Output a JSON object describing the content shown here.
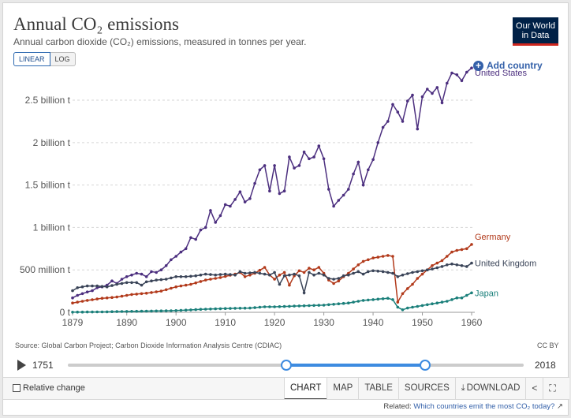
{
  "header": {
    "title": "Annual CO₂ emissions",
    "subtitle": "Annual carbon dioxide (CO₂) emissions, measured in tonnes per year.",
    "logo_line1": "Our World",
    "logo_line2": "in Data",
    "linear_label": "LINEAR",
    "log_label": "LOG",
    "add_country_label": "Add country"
  },
  "colors": {
    "United States": "#4c2f7f",
    "Germany": "#b23a1b",
    "United Kingdom": "#3a4458",
    "Japan": "#1a7f7a",
    "accent": "#3360a9"
  },
  "chart_data": {
    "type": "line",
    "title": "Annual CO₂ emissions",
    "xlabel": "",
    "ylabel": "",
    "xlim": [
      1879,
      1960
    ],
    "ylim": [
      0,
      2900000000
    ],
    "x_ticks": [
      1879,
      1890,
      1900,
      1910,
      1920,
      1930,
      1940,
      1950,
      1960
    ],
    "y_ticks": [
      {
        "value": 0,
        "label": "0 t"
      },
      {
        "value": 500000000,
        "label": "500 million t"
      },
      {
        "value": 1000000000,
        "label": "1 billion t"
      },
      {
        "value": 1500000000,
        "label": "1.5 billion t"
      },
      {
        "value": 2000000000,
        "label": "2 billion t"
      },
      {
        "value": 2500000000,
        "label": "2.5 billion t"
      }
    ],
    "grid": true,
    "series": [
      {
        "name": "United States",
        "anchors": [
          [
            1879,
            170
          ],
          [
            1880,
            200
          ],
          [
            1881,
            220
          ],
          [
            1882,
            240
          ],
          [
            1883,
            255
          ],
          [
            1884,
            290
          ],
          [
            1885,
            300
          ],
          [
            1886,
            320
          ],
          [
            1887,
            370
          ],
          [
            1888,
            340
          ],
          [
            1889,
            390
          ],
          [
            1890,
            420
          ],
          [
            1891,
            440
          ],
          [
            1892,
            460
          ],
          [
            1893,
            450
          ],
          [
            1894,
            420
          ],
          [
            1895,
            480
          ],
          [
            1896,
            470
          ],
          [
            1897,
            500
          ],
          [
            1898,
            550
          ],
          [
            1899,
            620
          ],
          [
            1900,
            660
          ],
          [
            1901,
            710
          ],
          [
            1902,
            750
          ],
          [
            1903,
            880
          ],
          [
            1904,
            860
          ],
          [
            1905,
            970
          ],
          [
            1906,
            1000
          ],
          [
            1907,
            1200
          ],
          [
            1908,
            1060
          ],
          [
            1909,
            1140
          ],
          [
            1910,
            1270
          ],
          [
            1911,
            1250
          ],
          [
            1912,
            1330
          ],
          [
            1913,
            1420
          ],
          [
            1914,
            1300
          ],
          [
            1915,
            1340
          ],
          [
            1916,
            1520
          ],
          [
            1917,
            1680
          ],
          [
            1918,
            1730
          ],
          [
            1919,
            1430
          ],
          [
            1920,
            1730
          ],
          [
            1921,
            1400
          ],
          [
            1922,
            1430
          ],
          [
            1923,
            1830
          ],
          [
            1924,
            1700
          ],
          [
            1925,
            1730
          ],
          [
            1926,
            1890
          ],
          [
            1927,
            1810
          ],
          [
            1928,
            1830
          ],
          [
            1929,
            1960
          ],
          [
            1930,
            1810
          ],
          [
            1931,
            1450
          ],
          [
            1932,
            1250
          ],
          [
            1933,
            1320
          ],
          [
            1934,
            1380
          ],
          [
            1935,
            1450
          ],
          [
            1936,
            1630
          ],
          [
            1937,
            1770
          ],
          [
            1938,
            1500
          ],
          [
            1939,
            1680
          ],
          [
            1940,
            1800
          ],
          [
            1941,
            2000
          ],
          [
            1942,
            2180
          ],
          [
            1943,
            2250
          ],
          [
            1944,
            2450
          ],
          [
            1945,
            2360
          ],
          [
            1946,
            2250
          ],
          [
            1947,
            2490
          ],
          [
            1948,
            2560
          ],
          [
            1949,
            2160
          ],
          [
            1950,
            2540
          ],
          [
            1951,
            2630
          ],
          [
            1952,
            2580
          ],
          [
            1953,
            2650
          ],
          [
            1954,
            2470
          ],
          [
            1955,
            2700
          ],
          [
            1956,
            2820
          ],
          [
            1957,
            2800
          ],
          [
            1958,
            2730
          ],
          [
            1959,
            2830
          ],
          [
            1960,
            2880
          ]
        ]
      },
      {
        "name": "Germany",
        "anchors": [
          [
            1879,
            110
          ],
          [
            1882,
            140
          ],
          [
            1885,
            165
          ],
          [
            1888,
            180
          ],
          [
            1891,
            210
          ],
          [
            1894,
            225
          ],
          [
            1897,
            250
          ],
          [
            1900,
            300
          ],
          [
            1903,
            330
          ],
          [
            1906,
            380
          ],
          [
            1909,
            410
          ],
          [
            1912,
            450
          ],
          [
            1913,
            470
          ],
          [
            1914,
            420
          ],
          [
            1916,
            460
          ],
          [
            1918,
            530
          ],
          [
            1919,
            440
          ],
          [
            1920,
            390
          ],
          [
            1921,
            440
          ],
          [
            1922,
            470
          ],
          [
            1923,
            320
          ],
          [
            1924,
            430
          ],
          [
            1925,
            490
          ],
          [
            1926,
            470
          ],
          [
            1927,
            520
          ],
          [
            1928,
            500
          ],
          [
            1929,
            530
          ],
          [
            1930,
            460
          ],
          [
            1931,
            380
          ],
          [
            1932,
            340
          ],
          [
            1933,
            370
          ],
          [
            1934,
            420
          ],
          [
            1935,
            460
          ],
          [
            1936,
            510
          ],
          [
            1937,
            560
          ],
          [
            1938,
            600
          ],
          [
            1939,
            620
          ],
          [
            1940,
            640
          ],
          [
            1941,
            650
          ],
          [
            1942,
            660
          ],
          [
            1943,
            670
          ],
          [
            1944,
            660
          ],
          [
            1945,
            120
          ],
          [
            1946,
            220
          ],
          [
            1947,
            280
          ],
          [
            1948,
            330
          ],
          [
            1949,
            400
          ],
          [
            1950,
            450
          ],
          [
            1951,
            500
          ],
          [
            1952,
            550
          ],
          [
            1953,
            580
          ],
          [
            1954,
            610
          ],
          [
            1955,
            660
          ],
          [
            1956,
            710
          ],
          [
            1957,
            730
          ],
          [
            1958,
            740
          ],
          [
            1959,
            750
          ],
          [
            1960,
            800
          ]
        ]
      },
      {
        "name": "United Kingdom",
        "anchors": [
          [
            1879,
            255
          ],
          [
            1880,
            290
          ],
          [
            1882,
            310
          ],
          [
            1884,
            310
          ],
          [
            1886,
            300
          ],
          [
            1888,
            330
          ],
          [
            1890,
            350
          ],
          [
            1892,
            350
          ],
          [
            1893,
            320
          ],
          [
            1894,
            360
          ],
          [
            1896,
            380
          ],
          [
            1898,
            390
          ],
          [
            1900,
            420
          ],
          [
            1902,
            420
          ],
          [
            1904,
            430
          ],
          [
            1906,
            450
          ],
          [
            1908,
            440
          ],
          [
            1910,
            450
          ],
          [
            1912,
            440
          ],
          [
            1913,
            480
          ],
          [
            1914,
            460
          ],
          [
            1916,
            470
          ],
          [
            1918,
            450
          ],
          [
            1919,
            440
          ],
          [
            1920,
            470
          ],
          [
            1921,
            330
          ],
          [
            1922,
            430
          ],
          [
            1923,
            440
          ],
          [
            1924,
            450
          ],
          [
            1925,
            430
          ],
          [
            1926,
            230
          ],
          [
            1927,
            470
          ],
          [
            1928,
            440
          ],
          [
            1929,
            460
          ],
          [
            1930,
            440
          ],
          [
            1931,
            400
          ],
          [
            1932,
            390
          ],
          [
            1933,
            400
          ],
          [
            1934,
            430
          ],
          [
            1935,
            440
          ],
          [
            1936,
            460
          ],
          [
            1937,
            480
          ],
          [
            1938,
            450
          ],
          [
            1939,
            480
          ],
          [
            1940,
            490
          ],
          [
            1942,
            480
          ],
          [
            1944,
            460
          ],
          [
            1945,
            420
          ],
          [
            1946,
            440
          ],
          [
            1948,
            470
          ],
          [
            1950,
            490
          ],
          [
            1952,
            510
          ],
          [
            1954,
            540
          ],
          [
            1955,
            560
          ],
          [
            1956,
            570
          ],
          [
            1958,
            550
          ],
          [
            1959,
            540
          ],
          [
            1960,
            580
          ]
        ]
      },
      {
        "name": "Japan",
        "anchors": [
          [
            1879,
            2
          ],
          [
            1885,
            5
          ],
          [
            1890,
            10
          ],
          [
            1895,
            15
          ],
          [
            1900,
            20
          ],
          [
            1905,
            35
          ],
          [
            1910,
            45
          ],
          [
            1915,
            50
          ],
          [
            1918,
            65
          ],
          [
            1920,
            65
          ],
          [
            1925,
            75
          ],
          [
            1930,
            85
          ],
          [
            1935,
            110
          ],
          [
            1938,
            140
          ],
          [
            1940,
            150
          ],
          [
            1942,
            160
          ],
          [
            1943,
            165
          ],
          [
            1944,
            150
          ],
          [
            1945,
            60
          ],
          [
            1946,
            30
          ],
          [
            1947,
            50
          ],
          [
            1950,
            80
          ],
          [
            1955,
            130
          ],
          [
            1957,
            170
          ],
          [
            1958,
            170
          ],
          [
            1960,
            230
          ]
        ]
      }
    ],
    "series_unit": "million t"
  },
  "footer": {
    "source": "Source: Global Carbon Project; Carbon Dioxide Information Analysis Centre (CDIAC)",
    "license": "CC BY",
    "timeline_start": "1751",
    "timeline_end": "2018",
    "relative_change_label": "Relative change",
    "tabs": [
      "CHART",
      "MAP",
      "TABLE",
      "SOURCES",
      "DOWNLOAD"
    ],
    "related_prefix": "Related: ",
    "related_link": "Which countries emit the most CO₂ today?"
  }
}
